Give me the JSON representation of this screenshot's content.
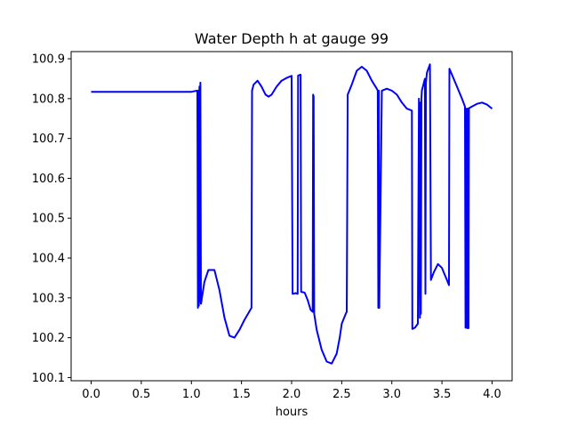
{
  "chart_data": {
    "type": "line",
    "title": "Water Depth h at gauge 99",
    "xlabel": "hours",
    "ylabel": "",
    "xlim": [
      -0.2,
      4.2
    ],
    "ylim": [
      100.092,
      100.918
    ],
    "xticks": [
      "0.0",
      "0.5",
      "1.0",
      "1.5",
      "2.0",
      "2.5",
      "3.0",
      "3.5",
      "4.0"
    ],
    "yticks": [
      "100.1",
      "100.2",
      "100.3",
      "100.4",
      "100.5",
      "100.6",
      "100.7",
      "100.8",
      "100.9"
    ],
    "grid": false,
    "series_color": "#0000ff",
    "series": [
      {
        "x": [
          0.0,
          0.5,
          1.0,
          1.06,
          1.065,
          1.07,
          1.075,
          1.08,
          1.085,
          1.09,
          1.095,
          1.1,
          1.105,
          1.13,
          1.17,
          1.23,
          1.28,
          1.33,
          1.38,
          1.43,
          1.48,
          1.53,
          1.6,
          1.605,
          1.62,
          1.66,
          1.7,
          1.74,
          1.77,
          1.8,
          1.85,
          1.9,
          1.95,
          2.0,
          2.01,
          2.015,
          2.04,
          2.06,
          2.065,
          2.09,
          2.095,
          2.1,
          2.13,
          2.16,
          2.19,
          2.21,
          2.215,
          2.22,
          2.225,
          2.25,
          2.3,
          2.35,
          2.4,
          2.45,
          2.48,
          2.5,
          2.54,
          2.55,
          2.56,
          2.6,
          2.65,
          2.7,
          2.75,
          2.8,
          2.85,
          2.86,
          2.865,
          2.87,
          2.875,
          2.9,
          2.95,
          3.0,
          3.05,
          3.1,
          3.15,
          3.2,
          3.205,
          3.23,
          3.26,
          3.27,
          3.28,
          3.285,
          3.29,
          3.295,
          3.3,
          3.32,
          3.33,
          3.335,
          3.34,
          3.35,
          3.38,
          3.39,
          3.42,
          3.46,
          3.5,
          3.55,
          3.57,
          3.575,
          3.6,
          3.65,
          3.7,
          3.73,
          3.735,
          3.74,
          3.745,
          3.75,
          3.755,
          3.76,
          3.765,
          3.77,
          3.8,
          3.85,
          3.9,
          3.95,
          4.0
        ],
        "values": [
          100.817,
          100.817,
          100.817,
          100.82,
          100.275,
          100.82,
          100.28,
          100.83,
          100.29,
          100.84,
          100.285,
          100.29,
          100.3,
          100.34,
          100.37,
          100.37,
          100.32,
          100.25,
          100.205,
          100.2,
          100.22,
          100.245,
          100.275,
          100.82,
          100.835,
          100.845,
          100.83,
          100.81,
          100.805,
          100.81,
          100.83,
          100.845,
          100.852,
          100.857,
          100.31,
          100.31,
          100.312,
          100.31,
          100.858,
          100.86,
          100.315,
          100.315,
          100.313,
          100.295,
          100.27,
          100.265,
          100.81,
          100.805,
          100.26,
          100.22,
          100.17,
          100.14,
          100.135,
          100.16,
          100.2,
          100.235,
          100.26,
          100.265,
          100.81,
          100.835,
          100.87,
          100.88,
          100.87,
          100.845,
          100.825,
          100.82,
          100.275,
          100.82,
          100.275,
          100.82,
          100.825,
          100.82,
          100.81,
          100.79,
          100.775,
          100.77,
          100.222,
          100.225,
          100.235,
          100.8,
          100.25,
          100.79,
          100.26,
          100.8,
          100.82,
          100.84,
          100.85,
          100.31,
          100.84,
          100.865,
          100.886,
          100.345,
          100.365,
          100.385,
          100.375,
          100.345,
          100.332,
          100.875,
          100.86,
          100.83,
          100.8,
          100.78,
          100.225,
          100.775,
          100.225,
          100.775,
          100.224,
          100.775,
          100.224,
          100.776,
          100.78,
          100.787,
          100.79,
          100.785,
          100.775
        ]
      }
    ]
  }
}
